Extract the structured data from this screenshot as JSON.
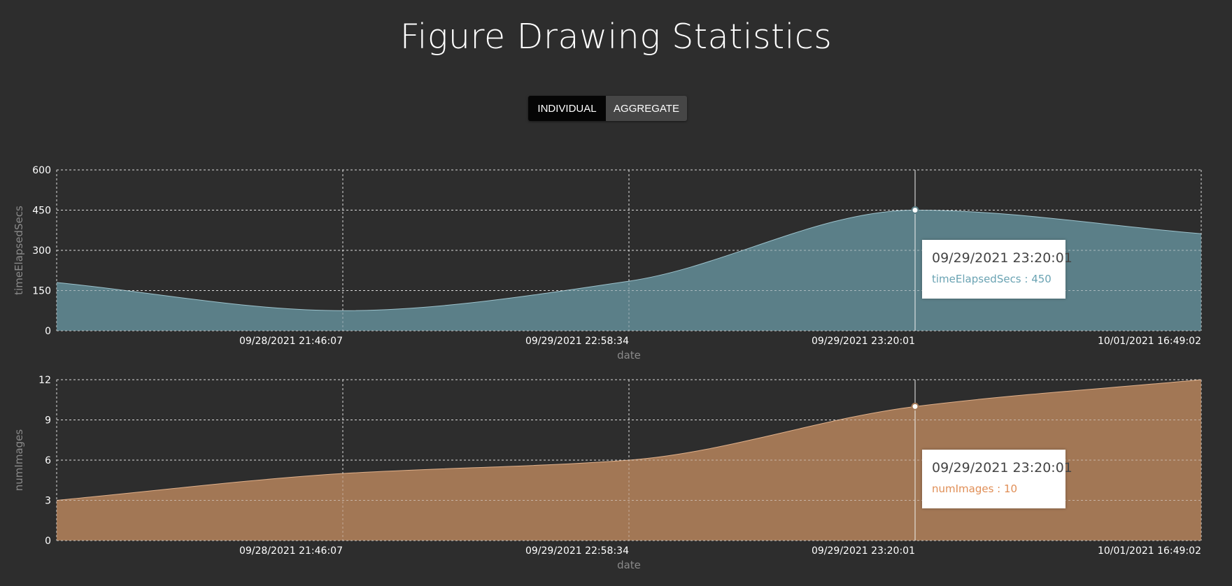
{
  "header": {
    "title": "Figure Drawing Statistics"
  },
  "toggle": {
    "individual_label": "INDIVIDUAL",
    "aggregate_label": "AGGREGATE",
    "selected": "INDIVIDUAL"
  },
  "colors": {
    "background": "#2d2d2d",
    "time_fill": "#5b7f88",
    "time_stroke": "#9cc2cc",
    "images_fill": "#a27755",
    "images_stroke": "#e0b08a",
    "time_tooltip_value": "#6aa3b3",
    "images_tooltip_value": "#e08e56"
  },
  "chart_data": [
    {
      "type": "area",
      "series_name": "timeElapsedSecs",
      "ylabel": "timeElapsedSecs",
      "xlabel": "date",
      "x_ticks": [
        "09/28/2021 21:46:07",
        "09/29/2021 22:58:34",
        "09/29/2021 23:20:01",
        "10/01/2021 16:49:02"
      ],
      "y_ticks": [
        0,
        150,
        300,
        450,
        600
      ],
      "ylim": [
        0,
        600
      ],
      "points": [
        {
          "x": "start",
          "y": 180
        },
        {
          "x": "09/28/2021 21:46:07",
          "y": 75
        },
        {
          "x": "09/29/2021 22:58:34",
          "y": 185
        },
        {
          "x": "09/29/2021 23:20:01",
          "y": 450
        },
        {
          "x": "10/01/2021 16:49:02",
          "y": 362
        }
      ],
      "grid": true,
      "tooltip": {
        "date": "09/29/2021 23:20:01",
        "text": "timeElapsedSecs : 450"
      },
      "highlight_index": 3
    },
    {
      "type": "area",
      "series_name": "numImages",
      "ylabel": "numImages",
      "xlabel": "date",
      "x_ticks": [
        "09/28/2021 21:46:07",
        "09/29/2021 22:58:34",
        "09/29/2021 23:20:01",
        "10/01/2021 16:49:02"
      ],
      "y_ticks": [
        0,
        3,
        6,
        9,
        12
      ],
      "ylim": [
        0,
        12
      ],
      "points": [
        {
          "x": "start",
          "y": 3
        },
        {
          "x": "09/28/2021 21:46:07",
          "y": 5
        },
        {
          "x": "09/29/2021 22:58:34",
          "y": 6
        },
        {
          "x": "09/29/2021 23:20:01",
          "y": 10
        },
        {
          "x": "10/01/2021 16:49:02",
          "y": 12
        }
      ],
      "grid": true,
      "tooltip": {
        "date": "09/29/2021 23:20:01",
        "text": "numImages : 10"
      },
      "highlight_index": 3
    }
  ]
}
